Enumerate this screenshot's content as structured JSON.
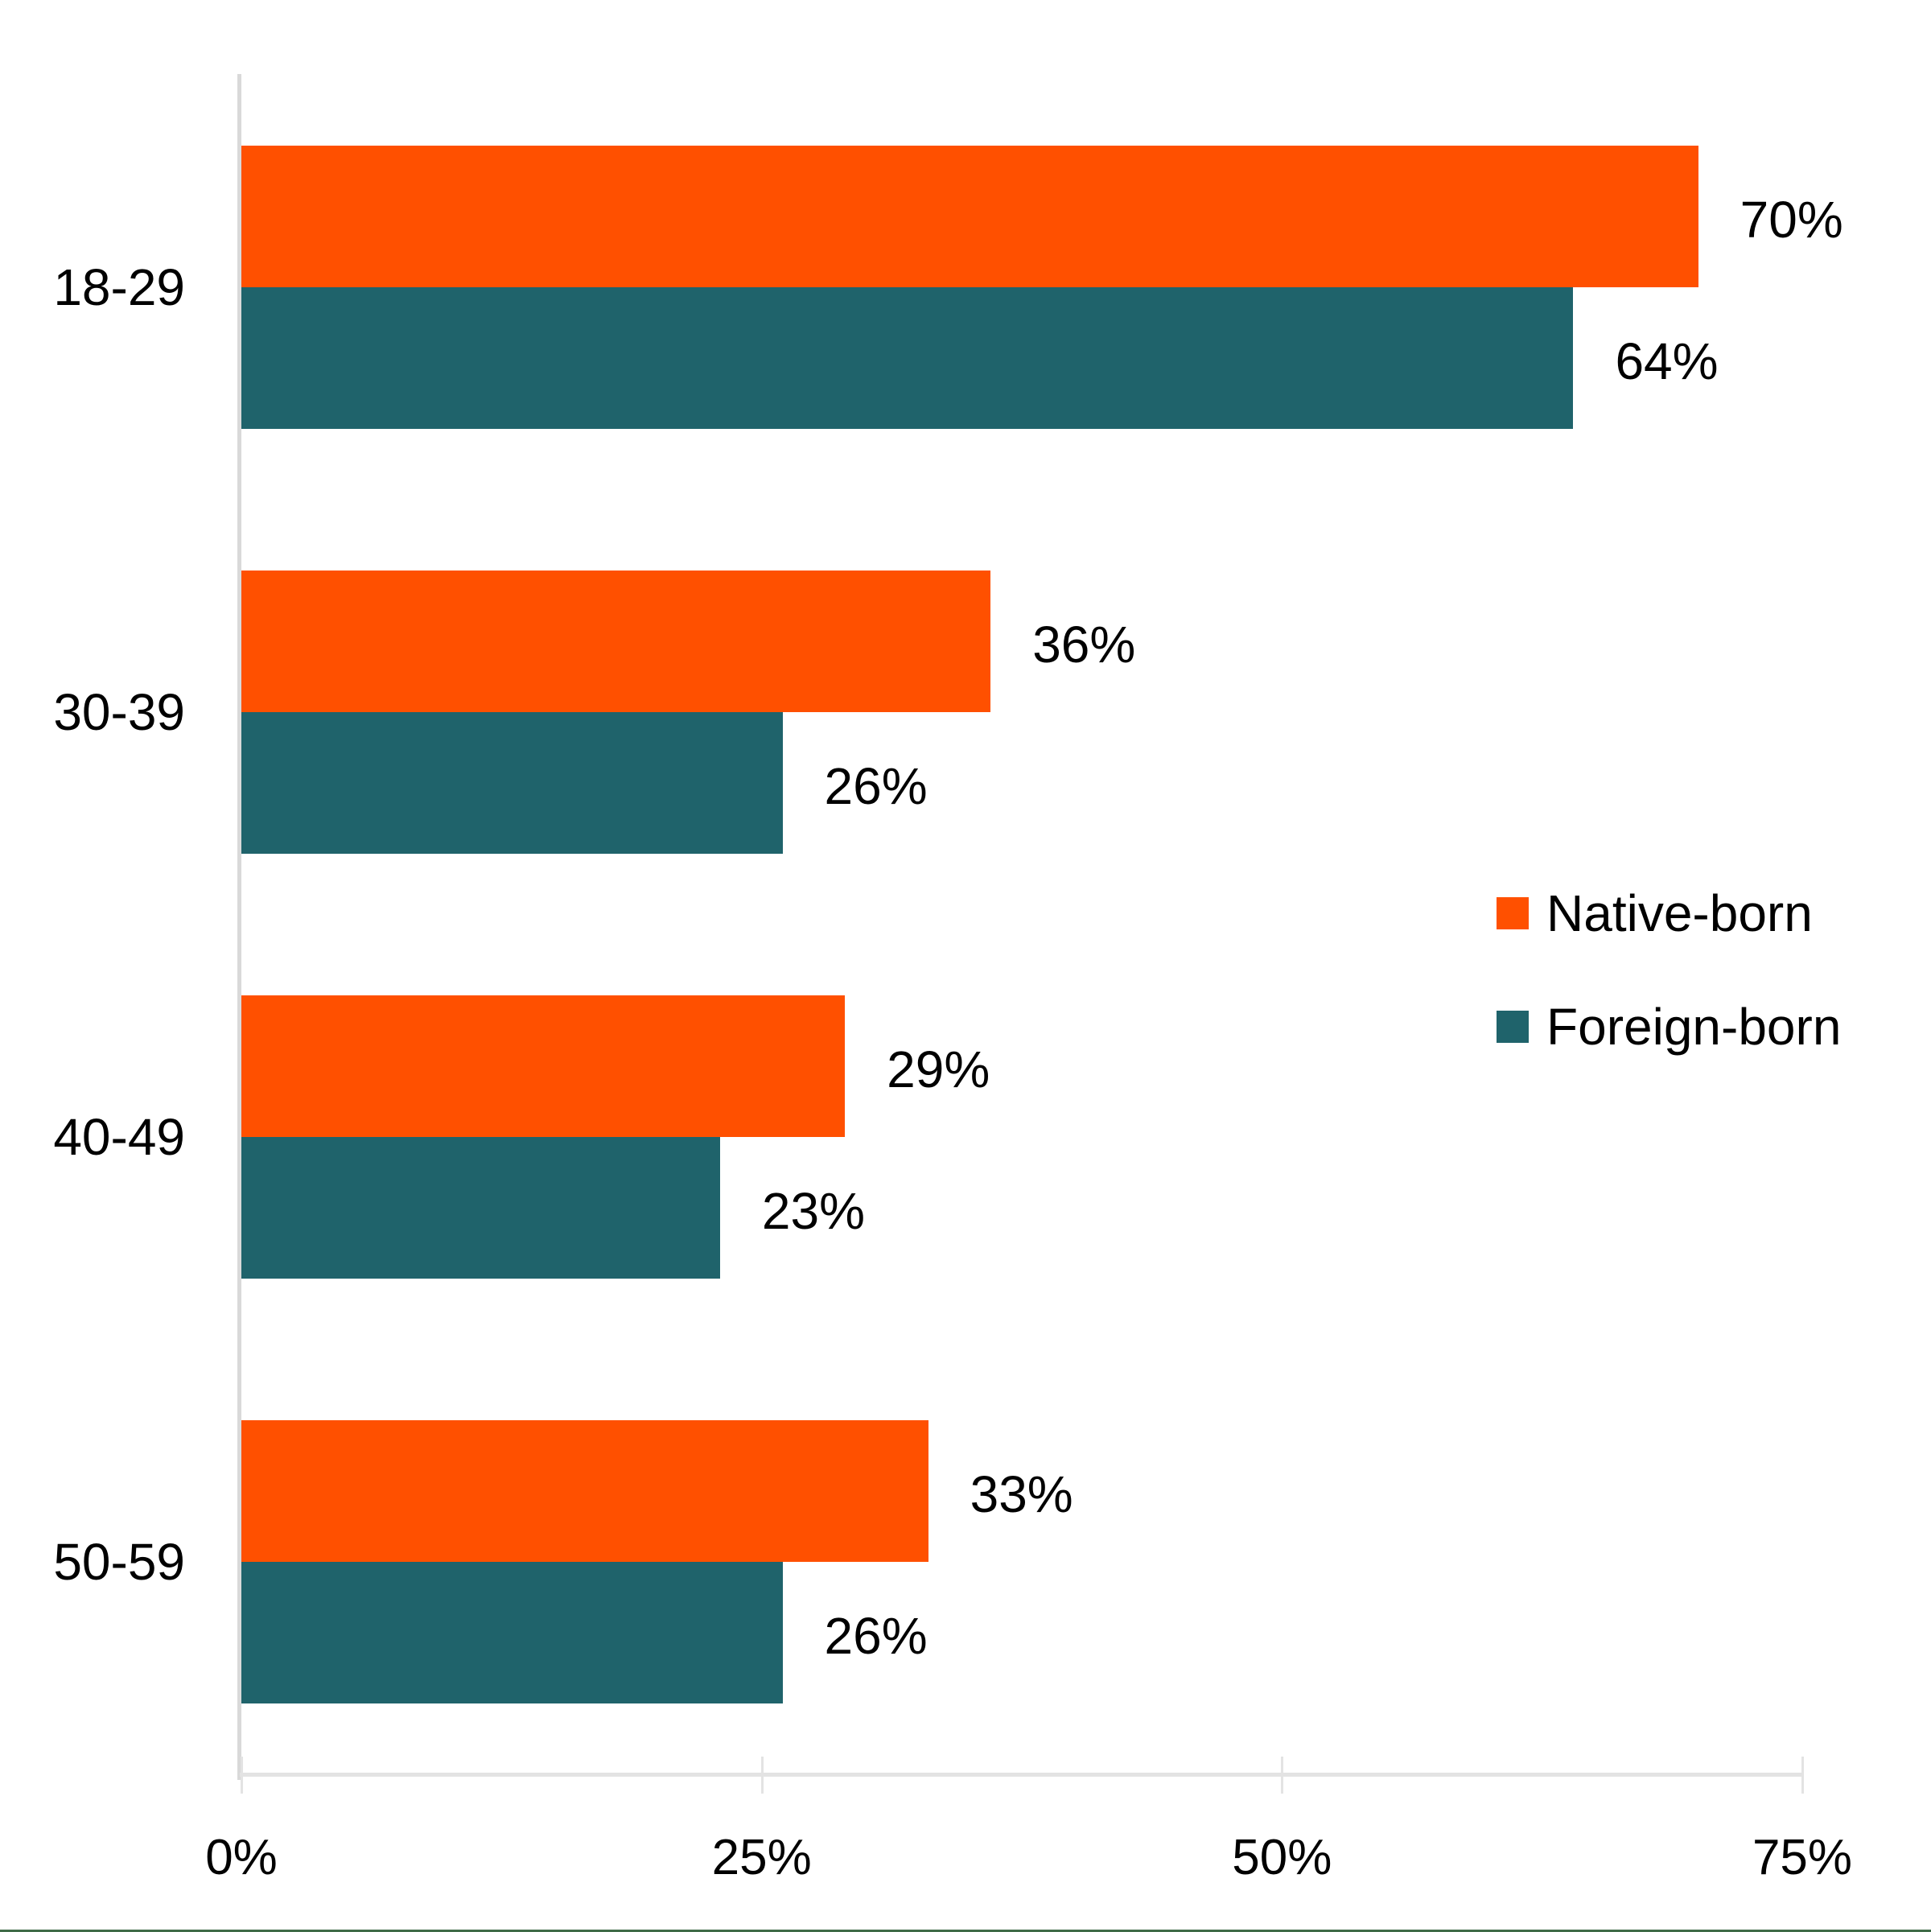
{
  "chart_data": {
    "type": "bar",
    "orientation": "horizontal",
    "title": "",
    "xlabel": "",
    "ylabel": "",
    "categories": [
      "18-29",
      "30-39",
      "40-49",
      "50-59"
    ],
    "series": [
      {
        "name": "Native-born",
        "color": "#FF5000",
        "values": [
          70,
          36,
          29,
          33
        ],
        "labels": [
          "70%",
          "36%",
          "29%",
          "33%"
        ]
      },
      {
        "name": "Foreign-born",
        "color": "#1F636B",
        "values": [
          64,
          26,
          23,
          26
        ],
        "labels": [
          "64%",
          "26%",
          "23%",
          "26%"
        ]
      }
    ],
    "xlim": [
      0,
      75
    ],
    "x_ticks": [
      "0%",
      "25%",
      "50%",
      "75%"
    ],
    "grid": false,
    "legend_position": "right"
  },
  "colors": {
    "native": "#FF5000",
    "foreign": "#1F636B",
    "axis": "#D9D9D9",
    "bottom_rule": "#3F6B47"
  }
}
